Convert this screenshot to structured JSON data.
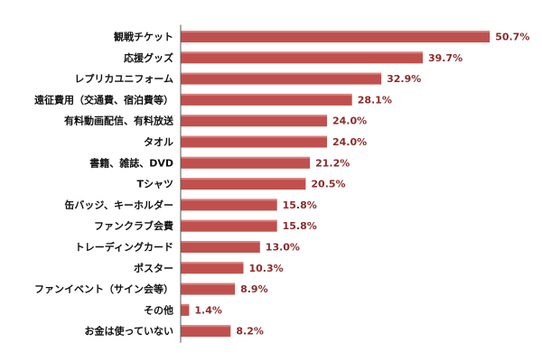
{
  "chart_data": {
    "type": "bar",
    "orientation": "horizontal",
    "title": "",
    "xlabel": "",
    "ylabel": "",
    "xlim": [
      0,
      55
    ],
    "grid": false,
    "value_suffix": "%",
    "categories": [
      "観戦チケット",
      "応援グッズ",
      "レプリカユニフォーム",
      "遠征費用（交通費、宿泊費等）",
      "有料動画配信、有料放送",
      "タオル",
      "書籍、雑誌、DVD",
      "Tシャツ",
      "缶バッジ、キーホルダー",
      "ファンクラブ会費",
      "トレーディングカード",
      "ポスター",
      "ファンイベント（サイン会等）",
      "その他",
      "お金は使っていない"
    ],
    "values": [
      50.7,
      39.7,
      32.9,
      28.1,
      24.0,
      24.0,
      21.2,
      20.5,
      15.8,
      15.8,
      13.0,
      10.3,
      8.9,
      1.4,
      8.2
    ],
    "value_labels": [
      "50.7%",
      "39.7%",
      "32.9%",
      "28.1%",
      "24.0%",
      "24.0%",
      "21.2%",
      "20.5%",
      "15.8%",
      "15.8%",
      "13.0%",
      "10.3%",
      "8.9%",
      "1.4%",
      "8.2%"
    ],
    "colors": {
      "bar": "#c0504d",
      "bar_highlight": "#e8a0a0",
      "value_text": "#8b2b2b",
      "axis": "#555555"
    }
  }
}
